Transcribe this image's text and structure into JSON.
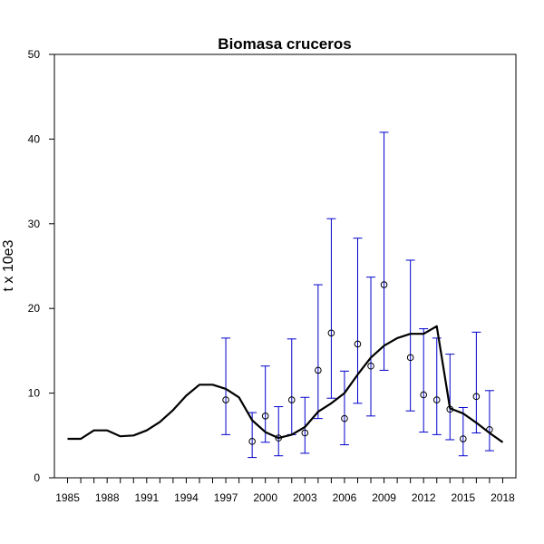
{
  "chart_data": {
    "type": "line",
    "title": "Biomasa cruceros",
    "xlabel": "",
    "ylabel": "t x 10e3",
    "xlim": [
      1984,
      2019
    ],
    "ylim": [
      0,
      50
    ],
    "x_tick_labels": [
      "1985",
      "1988",
      "1991",
      "1994",
      "1997",
      "2000",
      "2003",
      "2006",
      "2009",
      "2012",
      "2015",
      "2018"
    ],
    "y_tick_labels": [
      "0",
      "10",
      "20",
      "30",
      "40",
      "50"
    ],
    "grid": false,
    "colors": {
      "line": "#000000",
      "points": "#000000",
      "error_bars": "#0000cc"
    },
    "series": [
      {
        "type": "line",
        "x": [
          1985,
          1986,
          1987,
          1988,
          1989,
          1990,
          1991,
          1992,
          1993,
          1994,
          1995,
          1996,
          1997,
          1998,
          1999,
          2000,
          2001,
          2002,
          2003,
          2004,
          2005,
          2006,
          2007,
          2008,
          2009,
          2010,
          2011,
          2012,
          2013,
          2014,
          2015,
          2016,
          2017,
          2018
        ],
        "y": [
          4.6,
          4.6,
          5.6,
          5.6,
          4.9,
          5.0,
          5.6,
          6.6,
          8.0,
          9.7,
          11.0,
          11.0,
          10.5,
          9.5,
          6.8,
          5.4,
          4.7,
          5.1,
          6.0,
          7.8,
          8.8,
          10.0,
          12.2,
          14.2,
          15.6,
          16.5,
          17.0,
          17.0,
          17.9,
          8.2,
          7.6,
          6.5,
          5.3,
          4.2
        ]
      },
      {
        "type": "scatter_with_error_bars",
        "x": [
          1997,
          1999,
          2000,
          2001,
          2002,
          2003,
          2004,
          2005,
          2006,
          2007,
          2008,
          2009,
          2011,
          2012,
          2013,
          2014,
          2015,
          2016,
          2017
        ],
        "y": [
          9.2,
          4.3,
          7.3,
          4.7,
          9.2,
          5.3,
          12.7,
          17.1,
          7.0,
          15.8,
          13.2,
          22.8,
          14.2,
          9.8,
          9.2,
          8.1,
          4.6,
          9.6,
          5.7
        ],
        "lower": [
          5.1,
          2.4,
          4.2,
          2.6,
          5.1,
          2.9,
          7.0,
          9.4,
          3.9,
          8.8,
          7.3,
          12.7,
          7.9,
          5.4,
          5.1,
          4.5,
          2.6,
          5.3,
          3.2
        ],
        "upper": [
          16.5,
          7.7,
          13.2,
          8.4,
          16.4,
          9.5,
          22.8,
          30.6,
          12.6,
          28.3,
          23.7,
          40.8,
          25.7,
          17.6,
          16.5,
          14.6,
          8.3,
          17.2,
          10.3
        ]
      }
    ]
  }
}
